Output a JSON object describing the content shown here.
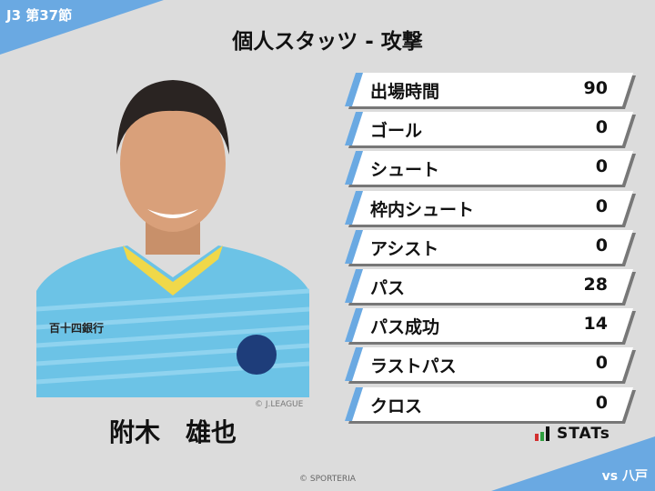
{
  "header": {
    "round": "J3 第37節",
    "title": "個人スタッツ - 攻撃",
    "opponent": "vs 八戸"
  },
  "player": {
    "name": "附木　雄也",
    "photo_credit": "© J.LEAGUE",
    "sponsor": "百十四銀行"
  },
  "stats": [
    {
      "label": "出場時間",
      "value": "90"
    },
    {
      "label": "ゴール",
      "value": "0"
    },
    {
      "label": "シュート",
      "value": "0"
    },
    {
      "label": "枠内シュート",
      "value": "0"
    },
    {
      "label": "アシスト",
      "value": "0"
    },
    {
      "label": "パス",
      "value": "28"
    },
    {
      "label": "パス成功",
      "value": "14"
    },
    {
      "label": "ラストパス",
      "value": "0"
    },
    {
      "label": "クロス",
      "value": "0"
    }
  ],
  "logo": {
    "text": "STATs"
  },
  "footer": {
    "copyright": "© SPORTERIA"
  },
  "colors": {
    "accent": "#6aa9e2",
    "background": "#dcdcdc"
  }
}
